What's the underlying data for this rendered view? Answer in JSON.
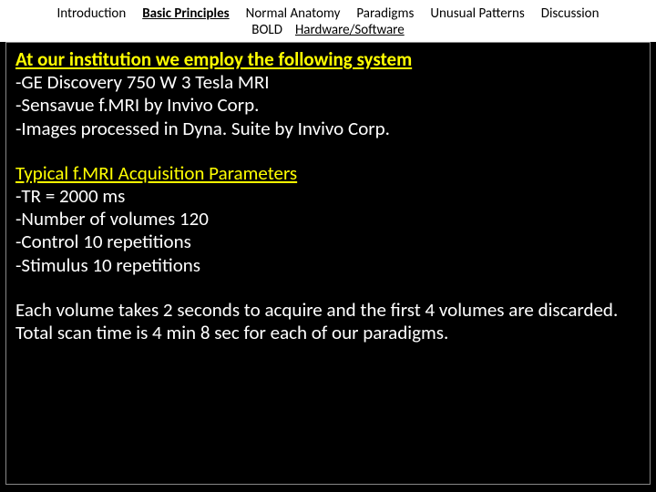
{
  "nav": {
    "row1": {
      "introduction": "Introduction",
      "basic_principles": "Basic Principles",
      "normal_anatomy": "Normal Anatomy",
      "paradigms": "Paradigms",
      "unusual_patterns": "Unusual Patterns",
      "discussion": "Discussion"
    },
    "row2": {
      "bold": "BOLD",
      "hw_sw": "Hardware/Software"
    }
  },
  "content": {
    "heading1": "At our institution we employ the following system",
    "s1_l1": "-GE Discovery 750 W 3 Tesla MRI",
    "s1_l2": "-Sensavue f.MRI by Invivo Corp.",
    "s1_l3": "-Images processed in Dyna. Suite by Invivo Corp.",
    "heading2": "Typical f.MRI Acquisition Parameters",
    "s2_l1": "-TR = 2000 ms",
    "s2_l2": "-Number of volumes 120",
    "s2_l3": "-Control 10 repetitions",
    "s2_l4": "-Stimulus 10 repetitions",
    "para": "Each volume takes 2 seconds to acquire and the first 4 volumes are discarded. Total scan time is 4 min 8 sec for each of our paradigms."
  },
  "colors": {
    "background": "#000000",
    "nav_bg": "#ffffff",
    "nav_text": "#000000",
    "heading": "#ffff00",
    "body_text": "#ffffff",
    "border": "#888888"
  }
}
